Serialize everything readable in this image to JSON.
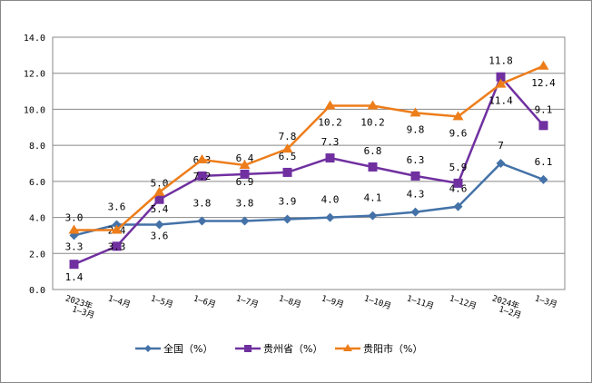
{
  "chart_data": {
    "type": "line",
    "categories": [
      "2023年1—3月",
      "1—4月",
      "1—5月",
      "1—6月",
      "1—7月",
      "1—8月",
      "1—9月",
      "1—10月",
      "1—11月",
      "1—12月",
      "2024年1—2月",
      "1—3月"
    ],
    "series": [
      {
        "name": "全国（%）",
        "color": "#4472A8",
        "marker": "diamond",
        "values": [
          3.0,
          3.6,
          3.6,
          3.8,
          3.8,
          3.9,
          4.0,
          4.1,
          4.3,
          4.6,
          7,
          6.1
        ],
        "labels": [
          "3.0",
          "3.6",
          "3.6",
          "3.8",
          "3.8",
          "3.9",
          "4.0",
          "4.1",
          "4.3",
          "4.6",
          "7",
          "6.1"
        ]
      },
      {
        "name": "贵州省（%）",
        "color": "#7030A0",
        "marker": "square",
        "values": [
          1.4,
          2.4,
          5.0,
          6.3,
          6.4,
          6.5,
          7.3,
          6.8,
          6.3,
          5.9,
          11.8,
          9.1
        ],
        "labels": [
          "1.4",
          "2.4",
          "5.0",
          "6.3",
          "6.4",
          "6.5",
          "7.3",
          "6.8",
          "6.3",
          "5.9",
          "11.8",
          "9.1"
        ]
      },
      {
        "name": "贵阳市（%）",
        "color": "#ED7D1A",
        "marker": "triangle",
        "values": [
          3.3,
          3.3,
          5.4,
          7.2,
          6.9,
          7.8,
          10.2,
          10.2,
          9.8,
          9.6,
          11.4,
          12.4
        ],
        "labels": [
          "3.3",
          "3.3",
          "5.4",
          "7.2",
          "6.9",
          "7.8",
          "10.2",
          "10.2",
          "9.8",
          "9.6",
          "11.4",
          "12.4"
        ]
      }
    ],
    "ylim": [
      0,
      14
    ],
    "yticks": [
      "0.0",
      "2.0",
      "4.0",
      "6.0",
      "8.0",
      "10.0",
      "12.0",
      "14.0"
    ],
    "grid": true,
    "legend": "bottom"
  }
}
